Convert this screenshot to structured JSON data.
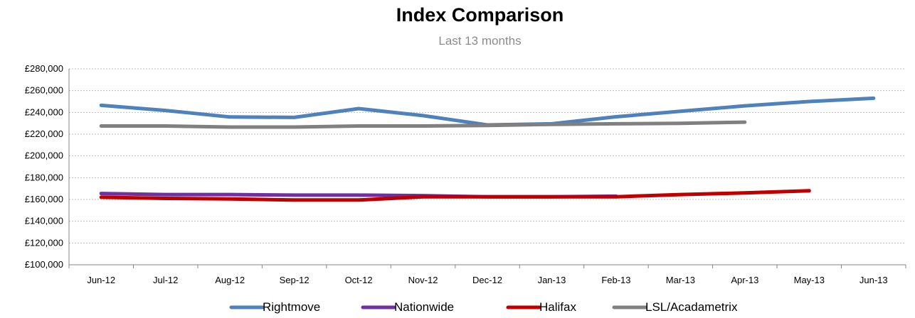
{
  "chart_data": {
    "type": "line",
    "title": "Index Comparison",
    "subtitle": "Last 13 months",
    "xlabel": "",
    "ylabel": "",
    "categories": [
      "Jun-12",
      "Jul-12",
      "Aug-12",
      "Sep-12",
      "Oct-12",
      "Nov-12",
      "Dec-12",
      "Jan-13",
      "Feb-13",
      "Mar-13",
      "Apr-13",
      "May-13",
      "Jun-13"
    ],
    "ylim": [
      100000,
      280000
    ],
    "yticks": [
      100000,
      120000,
      140000,
      160000,
      180000,
      200000,
      220000,
      240000,
      260000,
      280000
    ],
    "ytick_labels": [
      "£100,000",
      "£120,000",
      "£140,000",
      "£160,000",
      "£180,000",
      "£200,000",
      "£220,000",
      "£240,000",
      "£260,000",
      "£280,000"
    ],
    "grid": "horizontal dotted",
    "legend_position": "bottom",
    "series": [
      {
        "name": "Rightmove",
        "color": "#4f81bd",
        "values": [
          246500,
          241800,
          235800,
          235400,
          243500,
          237000,
          228500,
          229500,
          236000,
          241000,
          246000,
          250000,
          253000
        ]
      },
      {
        "name": "Nationwide",
        "color": "#7030a0",
        "values": [
          165500,
          164500,
          164500,
          164000,
          164000,
          163500,
          162500,
          162500,
          163000,
          null,
          null,
          null,
          null
        ]
      },
      {
        "name": "Halifax",
        "color": "#c00000",
        "values": [
          162000,
          161000,
          160500,
          159500,
          159500,
          162500,
          162500,
          162500,
          162500,
          164500,
          166000,
          168000,
          null
        ]
      },
      {
        "name": "LSL/Acadametrix",
        "color": "#808080",
        "values": [
          227500,
          227500,
          226500,
          226500,
          227500,
          227500,
          228000,
          229000,
          229500,
          230000,
          231000,
          null,
          null
        ]
      }
    ]
  }
}
